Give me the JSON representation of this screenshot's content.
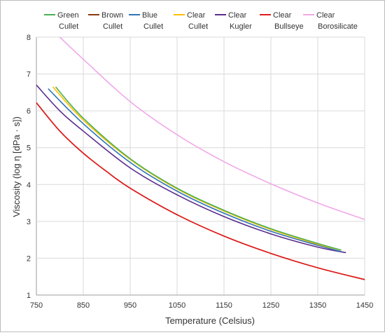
{
  "chart_data": {
    "type": "line",
    "xlabel": "Temperature (Celsius)",
    "ylabel": "Viscosity (log η [dPa · s])",
    "xlim": [
      750,
      1450
    ],
    "ylim": [
      1,
      8
    ],
    "x_ticks": [
      "750",
      "850",
      "950",
      "1050",
      "1150",
      "1250",
      "1350",
      "1450"
    ],
    "y_ticks": [
      "1",
      "2",
      "3",
      "4",
      "5",
      "6",
      "7",
      "8"
    ],
    "grid": true,
    "legend_position": "top",
    "series": [
      {
        "name": "Green Cullet",
        "legend_lines": [
          "Green",
          "Cullet"
        ],
        "color": "#4caf50",
        "x": [
          791,
          850,
          950,
          1050,
          1150,
          1250,
          1350,
          1400
        ],
        "y": [
          6.65,
          5.8,
          4.7,
          3.9,
          3.3,
          2.8,
          2.4,
          2.22
        ]
      },
      {
        "name": "Brown Cullet",
        "legend_lines": [
          "Brown",
          "Cullet"
        ],
        "color": "#8b3a0f",
        "x": [
          750,
          800,
          850,
          900,
          950,
          1050,
          1150,
          1250,
          1350,
          1450
        ],
        "y": [
          6.22,
          5.45,
          4.85,
          4.35,
          3.9,
          3.18,
          2.6,
          2.13,
          1.74,
          1.42
        ]
      },
      {
        "name": "Blue Cullet",
        "legend_lines": [
          "Blue",
          "Cullet"
        ],
        "color": "#2e75b6",
        "x": [
          775,
          850,
          950,
          1050,
          1150,
          1250,
          1350,
          1400
        ],
        "y": [
          6.6,
          5.65,
          4.6,
          3.82,
          3.22,
          2.73,
          2.35,
          2.18
        ]
      },
      {
        "name": "Clear Cullet",
        "legend_lines": [
          "Clear",
          "Cullet"
        ],
        "color": "#ffc000",
        "x": [
          785,
          850,
          950,
          1050,
          1150,
          1250,
          1350,
          1400
        ],
        "y": [
          6.65,
          5.75,
          4.68,
          3.88,
          3.28,
          2.78,
          2.38,
          2.22
        ]
      },
      {
        "name": "Clear Kugler",
        "legend_lines": [
          "Clear",
          "Kugler"
        ],
        "color": "#5b2c8e",
        "x": [
          750,
          800,
          850,
          950,
          1050,
          1150,
          1250,
          1350,
          1410
        ],
        "y": [
          6.7,
          6.0,
          5.45,
          4.45,
          3.72,
          3.13,
          2.66,
          2.3,
          2.15
        ]
      },
      {
        "name": "Clear Bullseye",
        "legend_lines": [
          "Clear",
          "Bullseye"
        ],
        "color": "#e31a1c",
        "x": [
          750,
          800,
          850,
          900,
          950,
          1050,
          1150,
          1250,
          1350,
          1450
        ],
        "y": [
          6.22,
          5.45,
          4.85,
          4.35,
          3.9,
          3.18,
          2.6,
          2.13,
          1.74,
          1.42
        ]
      },
      {
        "name": "Clear Borosilicate",
        "legend_lines": [
          "Clear",
          "Borosilicate"
        ],
        "color": "#f0a8e8",
        "x": [
          800,
          850,
          950,
          1050,
          1150,
          1250,
          1350,
          1450
        ],
        "y": [
          8.0,
          7.4,
          6.25,
          5.35,
          4.62,
          4.02,
          3.5,
          3.05
        ]
      }
    ]
  }
}
